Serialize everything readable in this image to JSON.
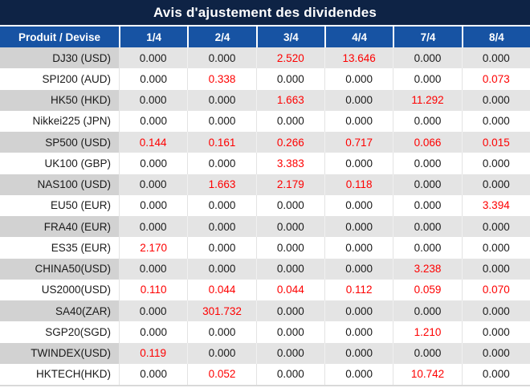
{
  "title": "Avis d'ajustement des dividendes",
  "colors": {
    "title_bg": "#0e2345",
    "header_bg": "#1753a3",
    "row_gray": "#e4e4e4",
    "row_gray_label": "#d2d2d2",
    "row_white": "#ffffff",
    "text_dark": "#1a1a1a",
    "red": "#fe0000"
  },
  "table": {
    "header": {
      "product_label": "Produit / Devise",
      "dates": [
        "1/4",
        "2/4",
        "3/4",
        "4/4",
        "7/4",
        "8/4"
      ]
    },
    "rows": [
      {
        "product": "DJ30 (USD)",
        "values": [
          "0.000",
          "0.000",
          "2.520",
          "13.646",
          "0.000",
          "0.000"
        ]
      },
      {
        "product": "SPI200 (AUD)",
        "values": [
          "0.000",
          "0.338",
          "0.000",
          "0.000",
          "0.000",
          "0.073"
        ]
      },
      {
        "product": "HK50 (HKD)",
        "values": [
          "0.000",
          "0.000",
          "1.663",
          "0.000",
          "11.292",
          "0.000"
        ]
      },
      {
        "product": "Nikkei225 (JPN)",
        "values": [
          "0.000",
          "0.000",
          "0.000",
          "0.000",
          "0.000",
          "0.000"
        ]
      },
      {
        "product": "SP500 (USD)",
        "values": [
          "0.144",
          "0.161",
          "0.266",
          "0.717",
          "0.066",
          "0.015"
        ]
      },
      {
        "product": "UK100 (GBP)",
        "values": [
          "0.000",
          "0.000",
          "3.383",
          "0.000",
          "0.000",
          "0.000"
        ]
      },
      {
        "product": "NAS100 (USD)",
        "values": [
          "0.000",
          "1.663",
          "2.179",
          "0.118",
          "0.000",
          "0.000"
        ]
      },
      {
        "product": "EU50 (EUR)",
        "values": [
          "0.000",
          "0.000",
          "0.000",
          "0.000",
          "0.000",
          "3.394"
        ]
      },
      {
        "product": "FRA40 (EUR)",
        "values": [
          "0.000",
          "0.000",
          "0.000",
          "0.000",
          "0.000",
          "0.000"
        ]
      },
      {
        "product": "ES35 (EUR)",
        "values": [
          "2.170",
          "0.000",
          "0.000",
          "0.000",
          "0.000",
          "0.000"
        ]
      },
      {
        "product": "CHINA50(USD)",
        "values": [
          "0.000",
          "0.000",
          "0.000",
          "0.000",
          "3.238",
          "0.000"
        ]
      },
      {
        "product": "US2000(USD)",
        "values": [
          "0.110",
          "0.044",
          "0.044",
          "0.112",
          "0.059",
          "0.070"
        ]
      },
      {
        "product": "SA40(ZAR)",
        "values": [
          "0.000",
          "301.732",
          "0.000",
          "0.000",
          "0.000",
          "0.000"
        ]
      },
      {
        "product": "SGP20(SGD)",
        "values": [
          "0.000",
          "0.000",
          "0.000",
          "0.000",
          "1.210",
          "0.000"
        ]
      },
      {
        "product": "TWINDEX(USD)",
        "values": [
          "0.119",
          "0.000",
          "0.000",
          "0.000",
          "0.000",
          "0.000"
        ]
      },
      {
        "product": "HKTECH(HKD)",
        "values": [
          "0.000",
          "0.052",
          "0.000",
          "0.000",
          "10.742",
          "0.000"
        ]
      }
    ]
  },
  "chart_data": {
    "type": "table",
    "title": "Avis d'ajustement des dividendes",
    "columns": [
      "Produit / Devise",
      "1/4",
      "2/4",
      "3/4",
      "4/4",
      "7/4",
      "8/4"
    ],
    "rows": [
      [
        "DJ30 (USD)",
        0.0,
        0.0,
        2.52,
        13.646,
        0.0,
        0.0
      ],
      [
        "SPI200 (AUD)",
        0.0,
        0.338,
        0.0,
        0.0,
        0.0,
        0.073
      ],
      [
        "HK50 (HKD)",
        0.0,
        0.0,
        1.663,
        0.0,
        11.292,
        0.0
      ],
      [
        "Nikkei225 (JPN)",
        0.0,
        0.0,
        0.0,
        0.0,
        0.0,
        0.0
      ],
      [
        "SP500 (USD)",
        0.144,
        0.161,
        0.266,
        0.717,
        0.066,
        0.015
      ],
      [
        "UK100 (GBP)",
        0.0,
        0.0,
        3.383,
        0.0,
        0.0,
        0.0
      ],
      [
        "NAS100 (USD)",
        0.0,
        1.663,
        2.179,
        0.118,
        0.0,
        0.0
      ],
      [
        "EU50 (EUR)",
        0.0,
        0.0,
        0.0,
        0.0,
        0.0,
        3.394
      ],
      [
        "FRA40 (EUR)",
        0.0,
        0.0,
        0.0,
        0.0,
        0.0,
        0.0
      ],
      [
        "ES35 (EUR)",
        2.17,
        0.0,
        0.0,
        0.0,
        0.0,
        0.0
      ],
      [
        "CHINA50(USD)",
        0.0,
        0.0,
        0.0,
        0.0,
        3.238,
        0.0
      ],
      [
        "US2000(USD)",
        0.11,
        0.044,
        0.044,
        0.112,
        0.059,
        0.07
      ],
      [
        "SA40(ZAR)",
        0.0,
        301.732,
        0.0,
        0.0,
        0.0,
        0.0
      ],
      [
        "SGP20(SGD)",
        0.0,
        0.0,
        0.0,
        0.0,
        1.21,
        0.0
      ],
      [
        "TWINDEX(USD)",
        0.119,
        0.0,
        0.0,
        0.0,
        0.0,
        0.0
      ],
      [
        "HKTECH(HKD)",
        0.0,
        0.052,
        0.0,
        0.0,
        10.742,
        0.0
      ]
    ],
    "notes": "Non-zero values rendered in red; zeros in black. Rows alternate gray/white starting gray."
  }
}
